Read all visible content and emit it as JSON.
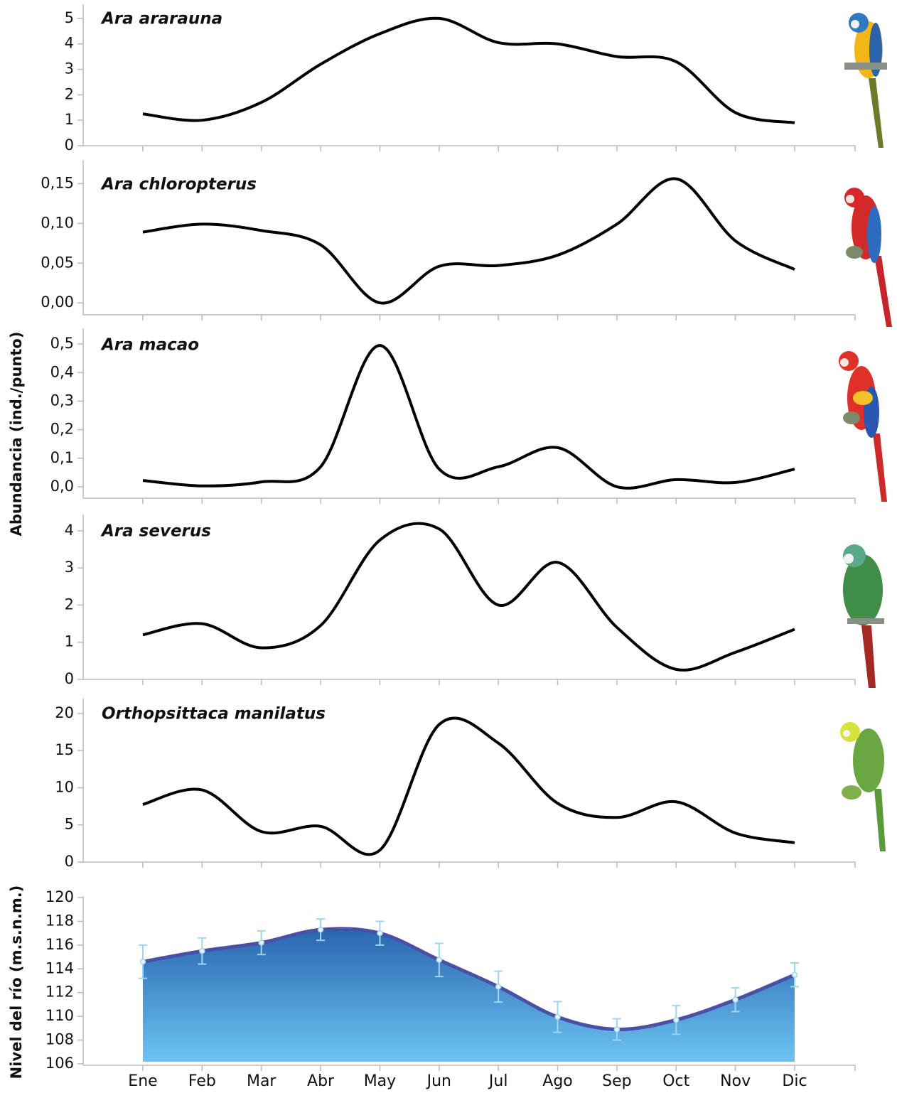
{
  "chart_data": [
    {
      "type": "line",
      "title": "Ara ararauna",
      "ylabel": "Abundancia (ind./punto)",
      "color": "#000000",
      "values": [
        1.25,
        1.0,
        1.7,
        3.2,
        4.4,
        5.0,
        4.05,
        4.0,
        3.5,
        3.3,
        1.3,
        0.9
      ],
      "ylim": [
        0,
        5.5
      ],
      "yticks": [
        0,
        1,
        2,
        3,
        4,
        5
      ]
    },
    {
      "type": "line",
      "title": "Ara chloropterus",
      "color": "#000000",
      "values": [
        0.089,
        0.099,
        0.091,
        0.073,
        0.0,
        0.046,
        0.047,
        0.06,
        0.099,
        0.156,
        0.078,
        0.042
      ],
      "ylim": [
        -0.015,
        0.178
      ],
      "yticks": [
        {
          "value": 0,
          "label": "0,00"
        },
        {
          "value": 0.05,
          "label": "0,05"
        },
        {
          "value": 0.1,
          "label": "0,10"
        },
        {
          "value": 0.15,
          "label": "0,15"
        }
      ]
    },
    {
      "type": "line",
      "title": "Ara macao",
      "color": "#000000",
      "values": [
        0.022,
        0.003,
        0.017,
        0.07,
        0.495,
        0.062,
        0.07,
        0.137,
        0.0,
        0.025,
        0.015,
        0.062
      ],
      "ylim": [
        -0.04,
        0.55
      ],
      "yticks": [
        {
          "value": 0,
          "label": "0,0"
        },
        {
          "value": 0.1,
          "label": "0,1"
        },
        {
          "value": 0.2,
          "label": "0,2"
        },
        {
          "value": 0.3,
          "label": "0,3"
        },
        {
          "value": 0.4,
          "label": "0,4"
        },
        {
          "value": 0.5,
          "label": "0,5"
        }
      ]
    },
    {
      "type": "line",
      "title": "Ara severus",
      "color": "#000000",
      "values": [
        1.2,
        1.5,
        0.85,
        1.45,
        3.75,
        4.05,
        2.0,
        3.15,
        1.4,
        0.27,
        0.73,
        1.35
      ],
      "ylim": [
        0,
        4.4
      ],
      "yticks": [
        0,
        1,
        2,
        3,
        4
      ]
    },
    {
      "type": "line",
      "title": "Orthopsittaca manilatus",
      "color": "#000000",
      "values": [
        7.75,
        9.7,
        4.1,
        4.8,
        1.6,
        18.5,
        16.0,
        7.9,
        6.0,
        8.1,
        3.9,
        2.6
      ],
      "ylim": [
        0,
        21.8
      ],
      "yticks": [
        0,
        5,
        10,
        15,
        20
      ]
    },
    {
      "type": "area",
      "ylabel": "Nivel del río (m.s.n.m.)",
      "color": "#2f74bd",
      "line_color": "#4b4fa6",
      "error_color": "#9fd4f4",
      "categories": [
        "Ene",
        "Feb",
        "Mar",
        "Abr",
        "May",
        "Jun",
        "Jul",
        "Ago",
        "Sep",
        "Oct",
        "Nov",
        "Dic"
      ],
      "values": [
        114.6,
        115.5,
        116.2,
        117.3,
        117.0,
        114.75,
        112.5,
        109.95,
        108.9,
        109.7,
        111.4,
        113.5
      ],
      "errors": [
        1.4,
        1.1,
        1.0,
        0.9,
        1.0,
        1.4,
        1.3,
        1.3,
        0.9,
        1.2,
        1.0,
        1.0
      ],
      "ylim": [
        106,
        120
      ],
      "yticks": [
        106,
        108,
        110,
        112,
        114,
        116,
        118,
        120
      ]
    }
  ]
}
